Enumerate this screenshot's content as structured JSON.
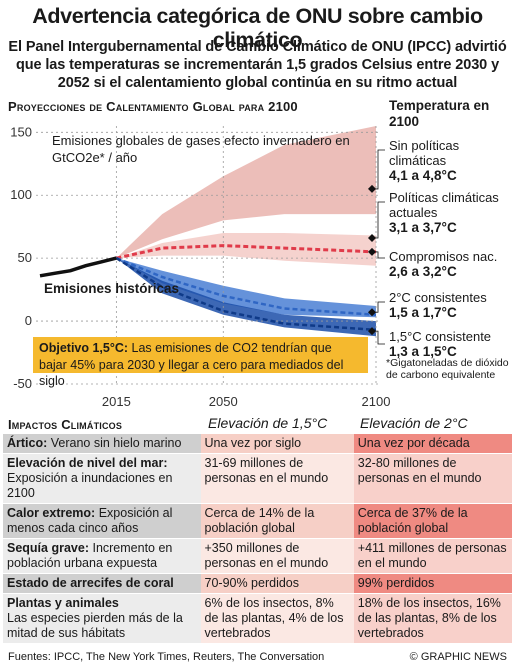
{
  "title": "Advertencia categórica de ONU sobre cambio climático",
  "subtitle": "El Panel Intergubernamental de Cambio Climático de ONU (IPCC) advirtió que las temperaturas se incrementarán 1,5 grados Celsius entre 2030 y 2052 si el calentamiento global continúa en su ritmo actual",
  "chart_heading": "Proyecciones de Calentamiento Global para 2100",
  "emissions_label": "Emisiones globales de gases efecto invernadero en GtCO2e* / año",
  "historical_label": "Emisiones históricas",
  "temperature_heading": "Temperatura en 2100",
  "scenarios": [
    {
      "name": "Sin políticas climáticas",
      "range": "4,1 a 4,8°C"
    },
    {
      "name": "Políticas climáticas actuales",
      "range": "3,1 a 3,7°C"
    },
    {
      "name": "Compromisos nac.",
      "range": "2,6 a 3,2°C"
    },
    {
      "name": "2°C consistentes",
      "range": "1,5 a 1,7°C"
    },
    {
      "name": "1,5°C consistente",
      "range": "1,3 a 1,5°C"
    }
  ],
  "footnote": "*Gigatoneladas de dióxido de carbono equivalente",
  "objective": {
    "label": "Objetivo 1,5°C:",
    "text": "Las emisiones de CO2 tendrían que bajar 45% para 2030 y llegar a cero para mediados del siglo"
  },
  "impacts": {
    "heading": "Impactos Climáticos",
    "col_15": "Elevación de 1,5°C",
    "col_2": "Elevación de 2°C",
    "rows": [
      {
        "title": "Ártico:",
        "detail": "Verano sin hielo marino",
        "v15": "Una vez por siglo",
        "v2": "Una vez por década"
      },
      {
        "title": "Elevación de nivel del mar:",
        "detail": "Exposición a inundaciones en 2100",
        "v15": "31-69 millones de personas en el mundo",
        "v2": "32-80 millones de personas en el mundo"
      },
      {
        "title": "Calor extremo:",
        "detail": "Exposición al menos cada cinco años",
        "v15": "Cerca de 14% de la población global",
        "v2": "Cerca de 37% de la población global"
      },
      {
        "title": "Sequía grave:",
        "detail": "Incremento en población urbana expuesta",
        "v15": "+350 millones de personas en el mundo",
        "v2": "+411 millones de personas en el mundo"
      },
      {
        "title": "Estado de arrecifes de coral",
        "detail": "",
        "v15": "70-90% perdidos",
        "v2": "99% perdidos"
      },
      {
        "title": "Plantas y animales",
        "detail": "Las especies pierden más de la mitad de sus hábitats",
        "v15": "6% de los insectos, 8% de las plantas, 4% de los vertebrados",
        "v2": "18% de los insectos, 16% de las plantas, 8% de los vertebrados"
      }
    ]
  },
  "sources": "Fuentes: IPCC, The New York Times, Reuters, The Conversation",
  "credit": "© GRAPHIC NEWS",
  "chart_data": {
    "type": "area",
    "ylim": [
      -50,
      155
    ],
    "xlim": [
      1990,
      2100
    ],
    "y_ticks": [
      150,
      100,
      50,
      0,
      -50
    ],
    "x_ticks": [
      2015,
      2050,
      2100
    ],
    "historical": {
      "x": [
        1990,
        1995,
        2000,
        2005,
        2010,
        2015
      ],
      "y": [
        36,
        38,
        40,
        44,
        47,
        50
      ]
    },
    "series": [
      {
        "name": "Sin políticas climáticas",
        "color": "#e9b3ad",
        "x": [
          2015,
          2030,
          2050,
          2070,
          2100
        ],
        "upper": [
          50,
          85,
          115,
          140,
          155
        ],
        "lower": [
          50,
          65,
          80,
          85,
          85
        ]
      },
      {
        "name": "Políticas climáticas actuales",
        "color": "#f3cac5",
        "x": [
          2015,
          2030,
          2050,
          2070,
          2100
        ],
        "upper": [
          50,
          62,
          70,
          70,
          68
        ],
        "lower": [
          50,
          52,
          52,
          48,
          44
        ]
      },
      {
        "name": "Compromisos nac.",
        "color": "#e03b4a",
        "x": [
          2015,
          2030,
          2050,
          2070,
          2100
        ],
        "mid": [
          50,
          58,
          60,
          58,
          55
        ]
      },
      {
        "name": "2°C consistentes",
        "color": "#4a7fd4",
        "x": [
          2015,
          2030,
          2050,
          2070,
          2100
        ],
        "upper": [
          50,
          40,
          28,
          18,
          12
        ],
        "lower": [
          50,
          30,
          14,
          5,
          3
        ],
        "mid": [
          50,
          35,
          20,
          10,
          5
        ]
      },
      {
        "name": "1,5°C consistente",
        "color": "#1b4ea8",
        "x": [
          2015,
          2030,
          2050,
          2070,
          2100
        ],
        "upper": [
          50,
          32,
          15,
          5,
          0
        ],
        "lower": [
          50,
          22,
          5,
          -5,
          -12
        ],
        "mid": [
          50,
          27,
          8,
          -2,
          -7
        ]
      }
    ]
  }
}
